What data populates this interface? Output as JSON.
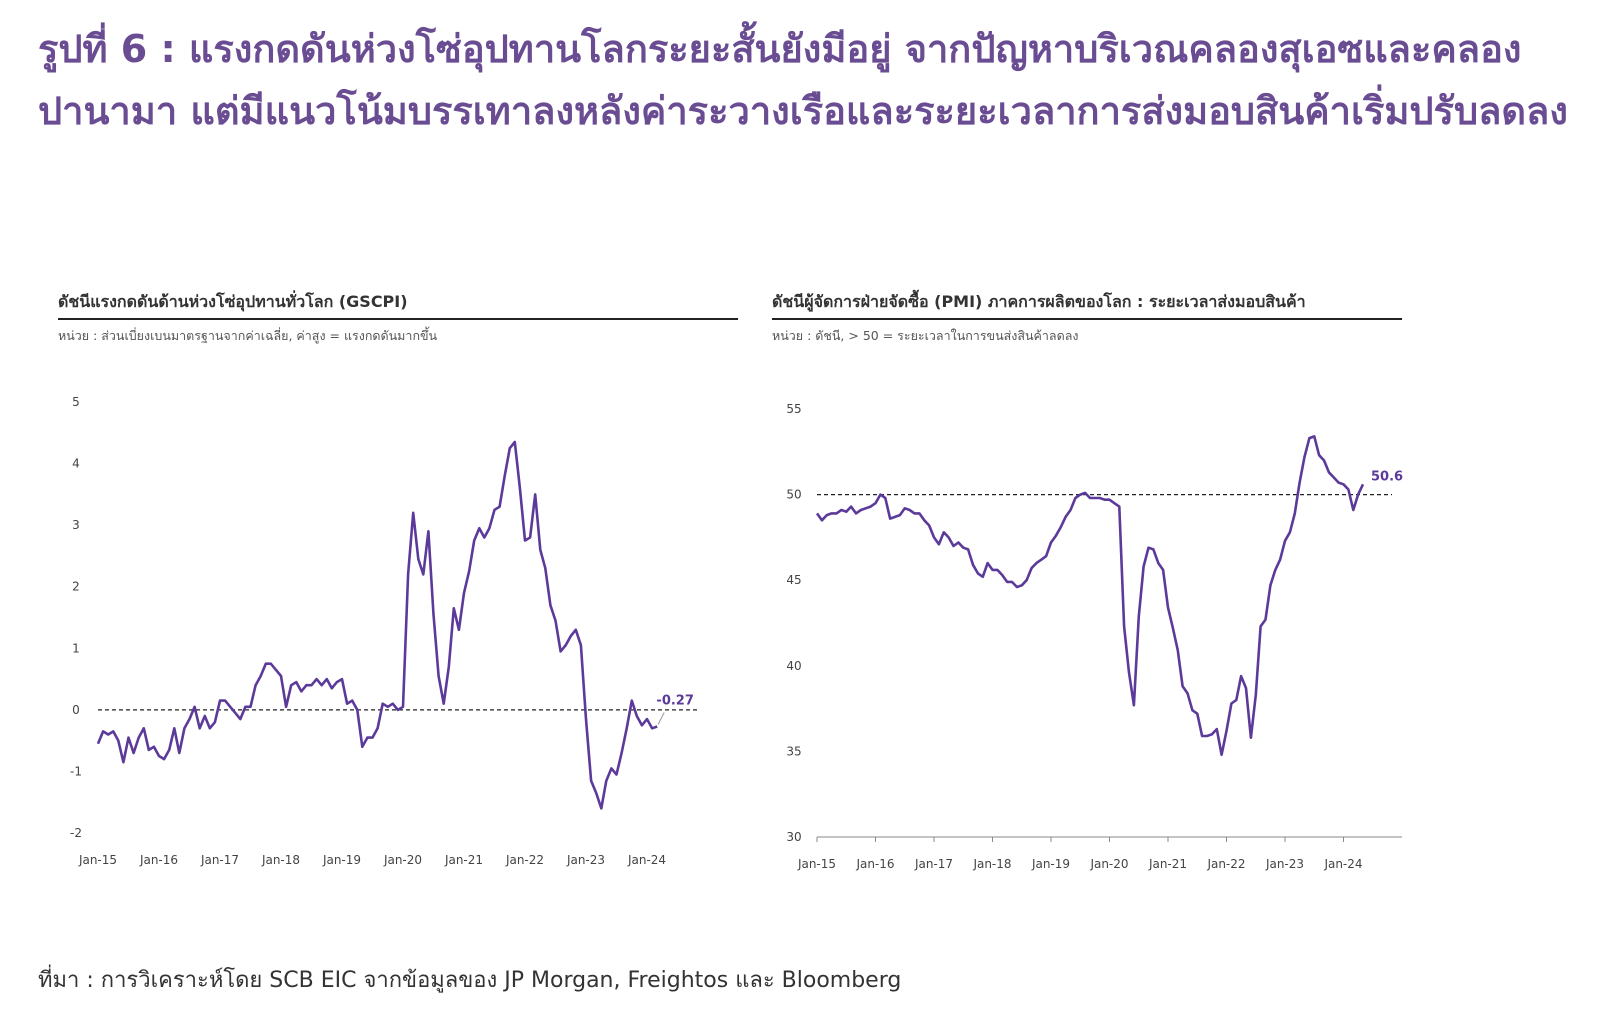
{
  "headline": "รูปที่ 6 : แรงกดดันห่วงโซ่อุปทานโลกระยะสั้นยังมีอยู่ จากปัญหาบริเวณคลองสุเอซและคลองปานามา แต่มีแนวโน้มบรรเทาลงหลังค่าระวางเรือและระยะเวลาการส่งมอบสินค้าเริ่มปรับลดลง",
  "source": "ที่มา : การวิเคราะห์โดย SCB EIC จากข้อมูลของ JP Morgan, Freightos และ Bloomberg",
  "colors": {
    "accent": "#6a4c93",
    "line": "#5b3a9a",
    "axis": "#444444",
    "text": "#333333"
  },
  "chart_data": [
    {
      "type": "line",
      "title": "ดัชนีแรงกดดันด้านห่วงโซ่อุปทานทั่วโลก (GSCPI)",
      "unit_note": "หน่วย : ส่วนเบี่ยงเบนมาตรฐานจากค่าเฉลี่ย, ค่าสูง = แรงกดดันมากขึ้น",
      "xlabel": "",
      "ylabel": "",
      "ylim": [
        -2,
        5
      ],
      "yticks": [
        5,
        4,
        3,
        2,
        1,
        0,
        -1,
        -2
      ],
      "ytick_labels": [
        "5",
        "4",
        "3",
        "2",
        "1",
        "0",
        "-1",
        "-2"
      ],
      "xticks": [
        "Jan-15",
        "Jan-16",
        "Jan-17",
        "Jan-18",
        "Jan-19",
        "Jan-20",
        "Jan-21",
        "Jan-22",
        "Jan-23",
        "Jan-24"
      ],
      "reference_line": 0,
      "last_label": "-0.27",
      "series": [
        {
          "name": "GSCPI",
          "start": "Jan-15",
          "values": [
            -0.55,
            -0.35,
            -0.4,
            -0.35,
            -0.5,
            -0.85,
            -0.45,
            -0.7,
            -0.45,
            -0.3,
            -0.65,
            -0.6,
            -0.75,
            -0.8,
            -0.65,
            -0.3,
            -0.7,
            -0.3,
            -0.15,
            0.05,
            -0.3,
            -0.1,
            -0.3,
            -0.2,
            0.15,
            0.15,
            0.05,
            -0.05,
            -0.15,
            0.05,
            0.05,
            0.4,
            0.55,
            0.75,
            0.75,
            0.65,
            0.55,
            0.05,
            0.4,
            0.45,
            0.3,
            0.4,
            0.4,
            0.5,
            0.4,
            0.5,
            0.35,
            0.45,
            0.5,
            0.1,
            0.15,
            0.0,
            -0.6,
            -0.45,
            -0.45,
            -0.3,
            0.1,
            0.05,
            0.1,
            0.0,
            0.05,
            2.2,
            3.2,
            2.45,
            2.2,
            2.9,
            1.55,
            0.55,
            0.1,
            0.7,
            1.65,
            1.3,
            1.9,
            2.25,
            2.75,
            2.95,
            2.8,
            2.95,
            3.25,
            3.3,
            3.8,
            4.25,
            4.35,
            3.6,
            2.75,
            2.8,
            3.5,
            2.6,
            2.3,
            1.7,
            1.45,
            0.95,
            1.05,
            1.2,
            1.3,
            1.05,
            -0.15,
            -1.15,
            -1.35,
            -1.6,
            -1.15,
            -0.95,
            -1.05,
            -0.7,
            -0.3,
            0.15,
            -0.1,
            -0.25,
            -0.15,
            -0.3,
            -0.27
          ]
        }
      ]
    },
    {
      "type": "line",
      "title": "ดัชนีผู้จัดการฝ่ายจัดซื้อ (PMI) ภาคการผลิตของโลก : ระยะเวลาส่งมอบสินค้า",
      "unit_note": "หน่วย : ดัชนี, > 50 = ระยะเวลาในการขนส่งสินค้าลดลง",
      "xlabel": "",
      "ylabel": "",
      "ylim": [
        30,
        55
      ],
      "yticks": [
        55,
        50,
        45,
        40,
        35,
        30
      ],
      "ytick_labels": [
        "55",
        "50",
        "45",
        "40",
        "35",
        "30"
      ],
      "xticks": [
        "Jan-15",
        "Jan-16",
        "Jan-17",
        "Jan-18",
        "Jan-19",
        "Jan-20",
        "Jan-21",
        "Jan-22",
        "Jan-23",
        "Jan-24"
      ],
      "reference_line": 50,
      "last_label": "50.6",
      "series": [
        {
          "name": "PMI Suppliers' Delivery Times",
          "start": "Jan-15",
          "values": [
            48.9,
            48.5,
            48.8,
            48.9,
            48.9,
            49.1,
            49.0,
            49.3,
            48.9,
            49.1,
            49.2,
            49.3,
            49.5,
            50.0,
            49.8,
            48.6,
            48.7,
            48.8,
            49.2,
            49.1,
            48.9,
            48.9,
            48.5,
            48.2,
            47.5,
            47.1,
            47.8,
            47.5,
            47.0,
            47.2,
            46.9,
            46.8,
            45.9,
            45.4,
            45.2,
            46.0,
            45.6,
            45.6,
            45.3,
            44.9,
            44.9,
            44.6,
            44.7,
            45.0,
            45.7,
            46.0,
            46.2,
            46.4,
            47.2,
            47.6,
            48.1,
            48.7,
            49.1,
            49.8,
            50.0,
            50.1,
            49.8,
            49.8,
            49.8,
            49.7,
            49.7,
            49.5,
            49.3,
            42.3,
            39.6,
            37.7,
            42.9,
            45.8,
            46.9,
            46.8,
            46.0,
            45.6,
            43.4,
            42.2,
            40.9,
            38.8,
            38.4,
            37.4,
            37.2,
            35.9,
            35.9,
            36.0,
            36.3,
            34.8,
            36.2,
            37.8,
            38.0,
            39.4,
            38.7,
            35.8,
            38.3,
            42.3,
            42.7,
            44.7,
            45.6,
            46.2,
            47.3,
            47.8,
            48.9,
            50.7,
            52.2,
            53.3,
            53.4,
            52.3,
            52.0,
            51.3,
            51.0,
            50.7,
            50.6,
            50.3,
            49.1,
            50.0,
            50.6
          ]
        }
      ]
    }
  ]
}
